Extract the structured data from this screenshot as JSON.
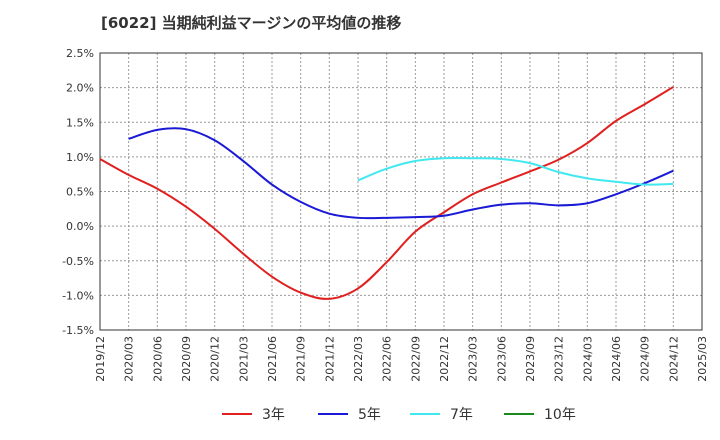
{
  "chart_data": {
    "type": "line",
    "title": "[6022]  当期純利益マージンの平均値の推移",
    "xlabel": "",
    "ylabel": "",
    "x_ticks": [
      "2019/12",
      "2020/03",
      "2020/06",
      "2020/09",
      "2020/12",
      "2021/03",
      "2021/06",
      "2021/09",
      "2021/12",
      "2022/03",
      "2022/06",
      "2022/09",
      "2022/12",
      "2023/03",
      "2023/06",
      "2023/09",
      "2023/12",
      "2024/03",
      "2024/06",
      "2024/09",
      "2024/12",
      "2025/03"
    ],
    "y_ticks": [
      "2.5%",
      "2.0%",
      "1.5%",
      "1.0%",
      "0.5%",
      "0.0%",
      "-0.5%",
      "-1.0%",
      "-1.5%"
    ],
    "ylim": [
      -1.5,
      2.5
    ],
    "grid": true,
    "legend_position": "bottom",
    "colors": {
      "3年": "#e0201f",
      "5年": "#1a1ad6",
      "7年": "#40e8f0",
      "10年": "#1a8a1a"
    },
    "series": [
      {
        "name": "3年",
        "color": "#e0201f",
        "x": [
          "2019/12",
          "2020/03",
          "2020/06",
          "2020/09",
          "2020/12",
          "2021/03",
          "2021/06",
          "2021/09",
          "2021/12",
          "2022/03",
          "2022/06",
          "2022/09",
          "2022/12",
          "2023/03",
          "2023/06",
          "2023/09",
          "2023/12",
          "2024/03",
          "2024/06",
          "2024/09",
          "2024/12"
        ],
        "values": [
          0.97,
          0.74,
          0.54,
          0.28,
          -0.04,
          -0.4,
          -0.73,
          -0.96,
          -1.05,
          -0.9,
          -0.52,
          -0.08,
          0.2,
          0.46,
          0.63,
          0.79,
          0.96,
          1.2,
          1.52,
          1.76,
          2.01
        ]
      },
      {
        "name": "5年",
        "color": "#1a1ad6",
        "x": [
          "2020/03",
          "2020/06",
          "2020/09",
          "2020/12",
          "2021/03",
          "2021/06",
          "2021/09",
          "2021/12",
          "2022/03",
          "2022/06",
          "2022/09",
          "2022/12",
          "2023/03",
          "2023/06",
          "2023/09",
          "2023/12",
          "2024/03",
          "2024/06",
          "2024/09",
          "2024/12"
        ],
        "values": [
          1.26,
          1.39,
          1.4,
          1.24,
          0.94,
          0.6,
          0.35,
          0.18,
          0.12,
          0.12,
          0.13,
          0.15,
          0.24,
          0.31,
          0.33,
          0.3,
          0.33,
          0.46,
          0.62,
          0.8
        ]
      },
      {
        "name": "7年",
        "color": "#40e8f0",
        "x": [
          "2022/03",
          "2022/06",
          "2022/09",
          "2022/12",
          "2023/03",
          "2023/06",
          "2023/09",
          "2023/12",
          "2024/03",
          "2024/06",
          "2024/09",
          "2024/12"
        ],
        "values": [
          0.66,
          0.83,
          0.94,
          0.98,
          0.98,
          0.97,
          0.91,
          0.78,
          0.69,
          0.64,
          0.6,
          0.61
        ]
      },
      {
        "name": "10年",
        "color": "#1a8a1a",
        "x": [],
        "values": []
      }
    ]
  }
}
